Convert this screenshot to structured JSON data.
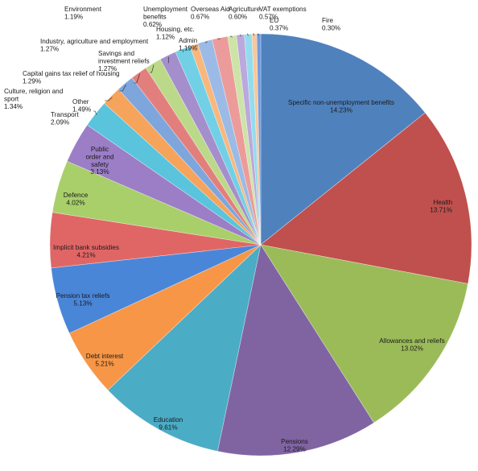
{
  "chart_data": {
    "type": "pie",
    "title": "",
    "series": [
      {
        "name": "",
        "slices": [
          {
            "label": "Specific non-unemployment benefits",
            "value": 14.23,
            "display": "14.23%",
            "color": "#4f81bd"
          },
          {
            "label": "Health",
            "value": 13.71,
            "display": "13.71%",
            "color": "#c0504d"
          },
          {
            "label": "Allowances and reliefs",
            "value": 13.02,
            "display": "13.02%",
            "color": "#9bbb59"
          },
          {
            "label": "Pensions",
            "value": 12.29,
            "display": "12.29%",
            "color": "#8064a2"
          },
          {
            "label": "Education",
            "value": 9.61,
            "display": "9.61%",
            "color": "#4bacc6"
          },
          {
            "label": "Debt interest",
            "value": 5.21,
            "display": "5.21%",
            "color": "#f79646"
          },
          {
            "label": "Pension tax reliefs",
            "value": 5.13,
            "display": "5.13%",
            "color": "#4a86d8"
          },
          {
            "label": "Implicit bank subsidies",
            "value": 4.21,
            "display": "4.21%",
            "color": "#e06666"
          },
          {
            "label": "Defence",
            "value": 4.02,
            "display": "4.02%",
            "color": "#a9cf6a"
          },
          {
            "label": "Public order and safety",
            "value": 3.13,
            "display": "3.13%",
            "color": "#9b7ec6"
          },
          {
            "label": "Transport",
            "value": 2.09,
            "display": "2.09%",
            "color": "#59c4dc"
          },
          {
            "label": "Other",
            "value": 1.49,
            "display": "1.49%",
            "color": "#f6a35b"
          },
          {
            "label": "Culture, religion and sport",
            "value": 1.34,
            "display": "1.34%",
            "color": "#7ea6dc"
          },
          {
            "label": "Capital gains tax relief of housing",
            "value": 1.29,
            "display": "1.29%",
            "color": "#e27f7d"
          },
          {
            "label": "Savings and investment reliefs",
            "value": 1.27,
            "display": "1.27%",
            "color": "#bcd98a"
          },
          {
            "label": "Industry, agriculture and employment",
            "value": 1.27,
            "display": "1.27%",
            "color": "#a48fcc"
          },
          {
            "label": "Environment",
            "value": 1.19,
            "display": "1.19%",
            "color": "#71d0e6"
          },
          {
            "label": "Unemployment benefits",
            "value": 0.62,
            "display": "0.62%",
            "color": "#f9b77d"
          },
          {
            "label": "Housing, etc.",
            "value": 1.12,
            "display": "1.12%",
            "color": "#9bbbe6"
          },
          {
            "label": "Admin",
            "value": 1.19,
            "display": "1.19%",
            "color": "#eb9c9a"
          },
          {
            "label": "Overseas Aid",
            "value": 0.67,
            "display": "0.67%",
            "color": "#cde4a8"
          },
          {
            "label": "Agriculture",
            "value": 0.6,
            "display": "0.60%",
            "color": "#bba8dc"
          },
          {
            "label": "VAT exemptions",
            "value": 0.57,
            "display": "0.57%",
            "color": "#93dcee"
          },
          {
            "label": "EU",
            "value": 0.37,
            "display": "0.37%",
            "color": "#f9c79a"
          },
          {
            "label": "Fire",
            "value": 0.3,
            "display": "0.30%",
            "color": "#6d9be0"
          }
        ]
      }
    ],
    "legend": "none",
    "grid": false
  }
}
